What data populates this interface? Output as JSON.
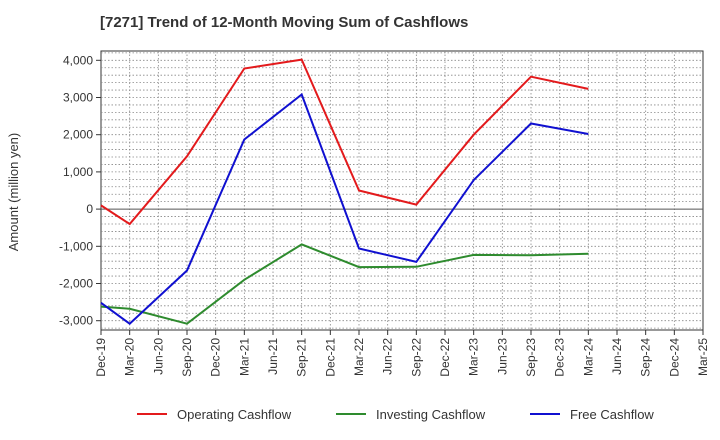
{
  "chart_data": {
    "type": "line",
    "title": "[7271]  Trend of 12-Month Moving Sum of Cashflows",
    "ylabel": "Amount (million yen)",
    "xlabel": "",
    "ylim": [
      -3250,
      4250
    ],
    "yticks": [
      4000,
      3000,
      2000,
      1000,
      0,
      -1000,
      -2000,
      -3000
    ],
    "ytick_labels": [
      "4,000",
      "3,000",
      "2,000",
      "1,000",
      "0",
      "-1,000",
      "-2,000",
      "-3,000"
    ],
    "categories": [
      "Dec-19",
      "Mar-20",
      "Jun-20",
      "Sep-20",
      "Dec-20",
      "Mar-21",
      "Jun-21",
      "Sep-21",
      "Dec-21",
      "Mar-22",
      "Jun-22",
      "Sep-22",
      "Dec-22",
      "Mar-23",
      "Jun-23",
      "Sep-23",
      "Dec-23",
      "Mar-24",
      "Jun-24",
      "Sep-24",
      "Dec-24",
      "Mar-25"
    ],
    "grid": true,
    "legend_position": "bottom",
    "series": [
      {
        "name": "Operating Cashflow",
        "color": "#e31a1c",
        "values": [
          100,
          -400,
          null,
          1420,
          null,
          3780,
          null,
          4020,
          null,
          500,
          null,
          120,
          null,
          2000,
          null,
          3560,
          null,
          3230,
          null,
          null,
          null,
          null
        ]
      },
      {
        "name": "Investing Cashflow",
        "color": "#2e8b2e",
        "values": [
          -2620,
          -2680,
          null,
          -3080,
          null,
          -1900,
          null,
          -950,
          null,
          -1560,
          null,
          -1550,
          null,
          -1230,
          null,
          -1240,
          null,
          -1200,
          null,
          null,
          null,
          null
        ]
      },
      {
        "name": "Free Cashflow",
        "color": "#1010d0",
        "values": [
          -2520,
          -3080,
          null,
          -1650,
          null,
          1870,
          null,
          3080,
          null,
          -1060,
          null,
          -1420,
          null,
          780,
          null,
          2300,
          null,
          2020,
          null,
          null,
          null,
          null
        ]
      }
    ]
  }
}
